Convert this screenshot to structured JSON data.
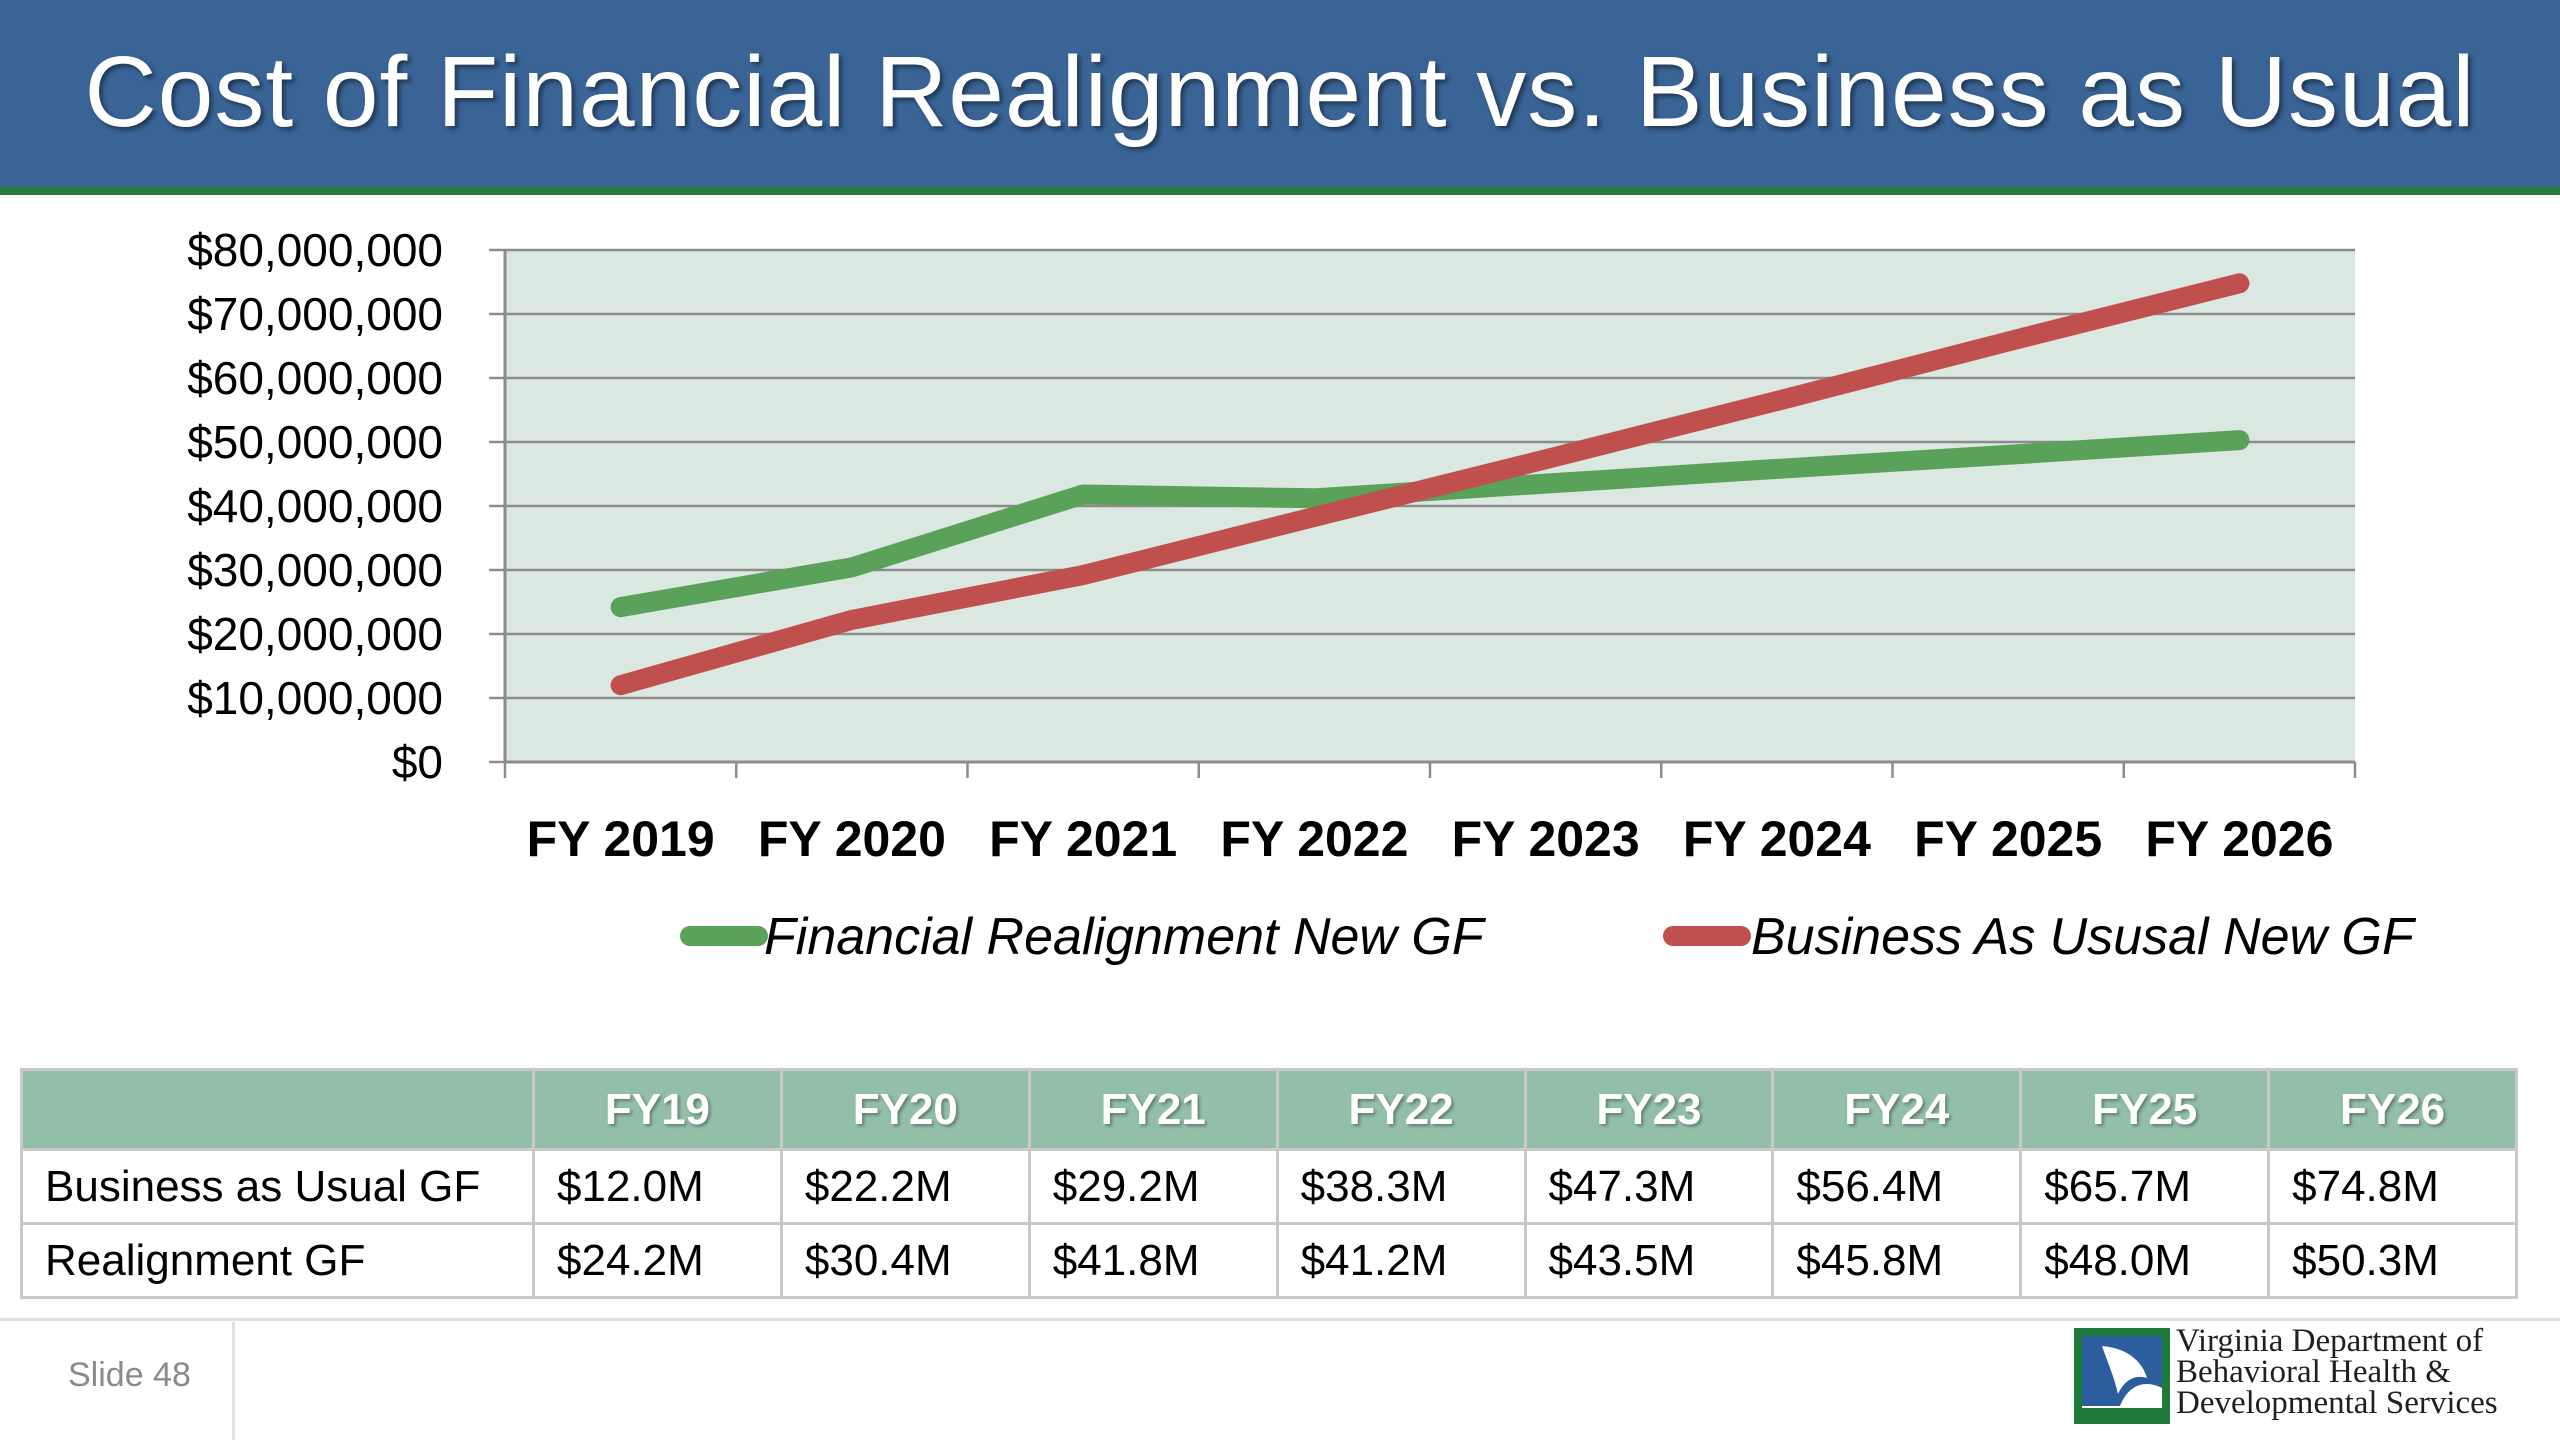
{
  "slide": {
    "title": "Cost of Financial Realignment vs. Business as Usual",
    "slide_number": "Slide 48",
    "org_lines": [
      "Virginia Department of",
      "Behavioral Health &",
      "Developmental Services"
    ]
  },
  "colors": {
    "header": "#3a6496",
    "realignment": "#5aa25a",
    "business_as_usual": "#c0504d",
    "plot_bg": "#dbe7e1",
    "table_header": "#93bfa9"
  },
  "chart_data": {
    "type": "line",
    "categories": [
      "FY 2019",
      "FY 2020",
      "FY 2021",
      "FY 2022",
      "FY 2023",
      "FY 2024",
      "FY 2025",
      "FY 2026"
    ],
    "series": [
      {
        "name": "Financial Realignment New GF",
        "color": "#5aa25a",
        "values": [
          24200000,
          30400000,
          41800000,
          41200000,
          43500000,
          45800000,
          48000000,
          50300000
        ]
      },
      {
        "name": "Business As Ususal New GF",
        "color": "#c0504d",
        "values": [
          12000000,
          22200000,
          29200000,
          38300000,
          47300000,
          56400000,
          65700000,
          74800000
        ]
      }
    ],
    "y_ticks": [
      "$0",
      "$10,000,000",
      "$20,000,000",
      "$30,000,000",
      "$40,000,000",
      "$50,000,000",
      "$60,000,000",
      "$70,000,000",
      "$80,000,000"
    ],
    "ylim": [
      0,
      80000000
    ],
    "grid": true,
    "legend_position": "bottom"
  },
  "table": {
    "headers": [
      "",
      "FY19",
      "FY20",
      "FY21",
      "FY22",
      "FY23",
      "FY24",
      "FY25",
      "FY26"
    ],
    "rows": [
      [
        "Business as Usual GF",
        "$12.0M",
        "$22.2M",
        "$29.2M",
        "$38.3M",
        "$47.3M",
        "$56.4M",
        "$65.7M",
        "$74.8M"
      ],
      [
        "Realignment GF",
        "$24.2M",
        "$30.4M",
        "$41.8M",
        "$41.2M",
        "$43.5M",
        "$45.8M",
        "$48.0M",
        "$50.3M"
      ]
    ]
  }
}
